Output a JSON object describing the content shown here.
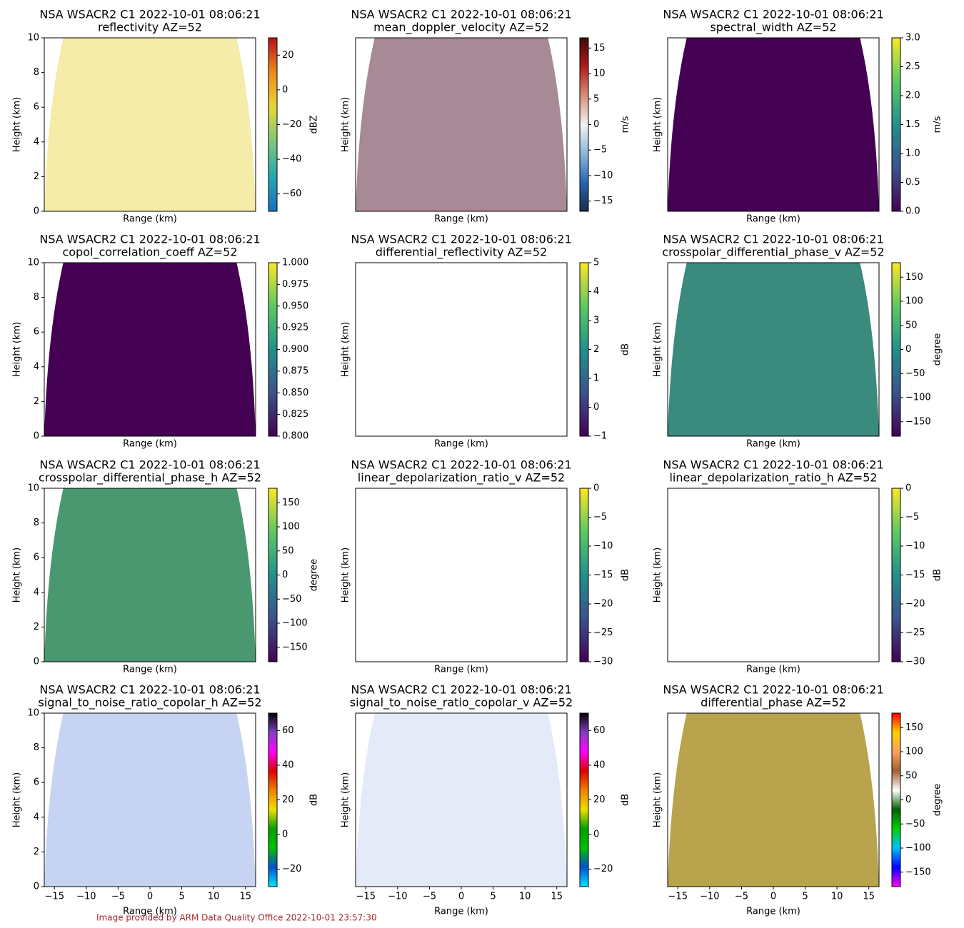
{
  "chart_data": [
    {
      "type": "heatmap",
      "title": "NSA WSACR2 C1 2022-10-01 08:06:21",
      "subtitle": "reflectivity  AZ=52",
      "xlabel": "Range (km)",
      "ylabel": "Height (km)",
      "clabel": "dBZ",
      "xlim": [
        -16.6,
        16.6
      ],
      "ylim": [
        0,
        10
      ],
      "yticks": [
        0,
        2,
        4,
        6,
        8,
        10
      ],
      "fill": "#f4eca8",
      "clim": [
        -70,
        30
      ],
      "cticks": [
        {
          "value": -60,
          "label": "−60"
        },
        {
          "value": -40,
          "label": "−40"
        },
        {
          "value": -20,
          "label": "−20"
        },
        0,
        20
      ],
      "colormap": [
        "#1a6fc0",
        "#23a8b0",
        "#7cc77a",
        "#e6d73a",
        "#f08a1b",
        "#b8101a"
      ]
    },
    {
      "type": "heatmap",
      "title": "NSA WSACR2 C1 2022-10-01 08:06:21",
      "subtitle": "mean_doppler_velocity  AZ=52",
      "xlabel": "Range (km)",
      "ylabel": "Height (km)",
      "clabel": "m/s",
      "xlim": [
        -16.6,
        16.6
      ],
      "ylim": [
        0,
        10
      ],
      "fill": "#a88a96",
      "clim": [
        -17,
        17
      ],
      "cticks": [
        {
          "value": -15,
          "label": "−15"
        },
        {
          "value": -10,
          "label": "−10"
        },
        {
          "value": -5,
          "label": "−5"
        },
        0,
        5,
        10,
        15
      ],
      "colormap": [
        "#1b2a4a",
        "#2565b0",
        "#8fb8d8",
        "#f2f2f2",
        "#d8907a",
        "#b01c1c",
        "#3d0a0a"
      ]
    },
    {
      "type": "heatmap",
      "title": "NSA WSACR2 C1 2022-10-01 08:06:21",
      "subtitle": "spectral_width  AZ=52",
      "xlabel": "Range (km)",
      "ylabel": "Height (km)",
      "clabel": "m/s",
      "xlim": [
        -16.6,
        16.6
      ],
      "ylim": [
        0,
        10
      ],
      "fill": "#440154",
      "clim": [
        0,
        3
      ],
      "cticks": [
        {
          "value": 0,
          "label": "0.0"
        },
        0.5,
        {
          "value": 1,
          "label": "1.0"
        },
        1.5,
        {
          "value": 2,
          "label": "2.0"
        },
        2.5,
        {
          "value": 3,
          "label": "3.0"
        }
      ],
      "colormap": [
        "#440154",
        "#3b528b",
        "#21918c",
        "#5ec962",
        "#fde725"
      ]
    },
    {
      "type": "heatmap",
      "title": "NSA WSACR2 C1 2022-10-01 08:06:21",
      "subtitle": "copol_correlation_coeff  AZ=52",
      "xlabel": "Range (km)",
      "ylabel": "Height (km)",
      "xlim": [
        -16.6,
        16.6
      ],
      "ylim": [
        0,
        10
      ],
      "yticks": [
        0,
        2,
        4,
        6,
        8,
        10
      ],
      "fill": "#440154",
      "clim": [
        0.8,
        1.0
      ],
      "cticks": [
        {
          "value": 0.8,
          "label": "0.800"
        },
        {
          "value": 0.825,
          "label": "0.825"
        },
        {
          "value": 0.85,
          "label": "0.850"
        },
        {
          "value": 0.875,
          "label": "0.875"
        },
        {
          "value": 0.9,
          "label": "0.900"
        },
        {
          "value": 0.925,
          "label": "0.925"
        },
        {
          "value": 0.95,
          "label": "0.950"
        },
        {
          "value": 0.975,
          "label": "0.975"
        },
        {
          "value": 1.0,
          "label": "1.000"
        }
      ],
      "colormap": [
        "#440154",
        "#3b528b",
        "#21918c",
        "#5ec962",
        "#fde725"
      ]
    },
    {
      "type": "heatmap",
      "title": "NSA WSACR2 C1 2022-10-01 08:06:21",
      "subtitle": "differential_reflectivity  AZ=52",
      "xlabel": "Range (km)",
      "ylabel": "Height (km)",
      "clabel": "dB",
      "xlim": [
        -16.6,
        16.6
      ],
      "ylim": [
        0,
        10
      ],
      "clim": [
        -1,
        5
      ],
      "cticks": [
        {
          "value": -1,
          "label": "−1"
        },
        0,
        1,
        2,
        3,
        4,
        5
      ],
      "colormap": [
        "#440154",
        "#3b528b",
        "#21918c",
        "#5ec962",
        "#fde725"
      ]
    },
    {
      "type": "heatmap",
      "title": "NSA WSACR2 C1 2022-10-01 08:06:21",
      "subtitle": "crosspolar_differential_phase_v  AZ=52",
      "xlabel": "Range (km)",
      "ylabel": "Height (km)",
      "clabel": "degree",
      "xlim": [
        -16.6,
        16.6
      ],
      "ylim": [
        0,
        10
      ],
      "fill": "#3a8a7e",
      "clim": [
        -180,
        180
      ],
      "cticks": [
        {
          "value": -150,
          "label": "−150"
        },
        {
          "value": -100,
          "label": "−100"
        },
        {
          "value": -50,
          "label": "−50"
        },
        0,
        50,
        100,
        150
      ],
      "colormap": [
        "#440154",
        "#3b528b",
        "#21918c",
        "#5ec962",
        "#fde725"
      ]
    },
    {
      "type": "heatmap",
      "title": "NSA WSACR2 C1 2022-10-01 08:06:21",
      "subtitle": "crosspolar_differential_phase_h  AZ=52",
      "xlabel": "Range (km)",
      "ylabel": "Height (km)",
      "clabel": "degree",
      "xlim": [
        -16.6,
        16.6
      ],
      "ylim": [
        0,
        10
      ],
      "yticks": [
        0,
        2,
        4,
        6,
        8,
        10
      ],
      "fill": "#4a9870",
      "clim": [
        -180,
        180
      ],
      "cticks": [
        {
          "value": -150,
          "label": "−150"
        },
        {
          "value": -100,
          "label": "−100"
        },
        {
          "value": -50,
          "label": "−50"
        },
        0,
        50,
        100,
        150
      ],
      "colormap": [
        "#440154",
        "#3b528b",
        "#21918c",
        "#5ec962",
        "#fde725"
      ]
    },
    {
      "type": "heatmap",
      "title": "NSA WSACR2 C1 2022-10-01 08:06:21",
      "subtitle": "linear_depolarization_ratio_v  AZ=52",
      "xlabel": "Range (km)",
      "ylabel": "Height (km)",
      "clabel": "dB",
      "xlim": [
        -16.6,
        16.6
      ],
      "ylim": [
        0,
        10
      ],
      "clim": [
        -30,
        0
      ],
      "cticks": [
        {
          "value": -30,
          "label": "−30"
        },
        {
          "value": -25,
          "label": "−25"
        },
        {
          "value": -20,
          "label": "−20"
        },
        {
          "value": -15,
          "label": "−15"
        },
        {
          "value": -10,
          "label": "−10"
        },
        {
          "value": -5,
          "label": "−5"
        },
        0
      ],
      "colormap": [
        "#440154",
        "#3b528b",
        "#21918c",
        "#5ec962",
        "#fde725"
      ]
    },
    {
      "type": "heatmap",
      "title": "NSA WSACR2 C1 2022-10-01 08:06:21",
      "subtitle": "linear_depolarization_ratio_h  AZ=52",
      "xlabel": "Range (km)",
      "ylabel": "Height (km)",
      "clabel": "dB",
      "xlim": [
        -16.6,
        16.6
      ],
      "ylim": [
        0,
        10
      ],
      "clim": [
        -30,
        0
      ],
      "cticks": [
        {
          "value": -30,
          "label": "−30"
        },
        {
          "value": -25,
          "label": "−25"
        },
        {
          "value": -20,
          "label": "−20"
        },
        {
          "value": -15,
          "label": "−15"
        },
        {
          "value": -10,
          "label": "−10"
        },
        {
          "value": -5,
          "label": "−5"
        },
        0
      ],
      "colormap": [
        "#440154",
        "#3b528b",
        "#21918c",
        "#5ec962",
        "#fde725"
      ]
    },
    {
      "type": "heatmap",
      "title": "NSA WSACR2 C1 2022-10-01 08:06:21",
      "subtitle": "signal_to_noise_ratio_copolar_h  AZ=52",
      "xlabel": "Range (km)",
      "ylabel": "Height (km)",
      "clabel": "dB",
      "xlim": [
        -16.6,
        16.6
      ],
      "ylim": [
        0,
        10
      ],
      "yticks": [
        0,
        2,
        4,
        6,
        8,
        10
      ],
      "fill": "#c6d3f2",
      "xticks": [
        {
          "value": -15,
          "label": "−15"
        },
        {
          "value": -10,
          "label": "−10"
        },
        {
          "value": -5,
          "label": "−5"
        },
        0,
        5,
        10,
        15
      ],
      "clim": [
        -30,
        70
      ],
      "cticks": [
        {
          "value": -20,
          "label": "−20"
        },
        0,
        20,
        40,
        60
      ],
      "colormap": [
        "#00e5ff",
        "#0050d0",
        "#00c000",
        "#00a000",
        "#f0e000",
        "#f08000",
        "#e00000",
        "#ff00ff",
        "#8040c0",
        "#000000"
      ]
    },
    {
      "type": "heatmap",
      "title": "NSA WSACR2 C1 2022-10-01 08:06:21",
      "subtitle": "signal_to_noise_ratio_copolar_v  AZ=52",
      "xlabel": "Range (km)",
      "ylabel": "Height (km)",
      "clabel": "dB",
      "xlim": [
        -16.6,
        16.6
      ],
      "ylim": [
        0,
        10
      ],
      "fill": "#e4eaf8",
      "xticks": [
        {
          "value": -15,
          "label": "−15"
        },
        {
          "value": -10,
          "label": "−10"
        },
        {
          "value": -5,
          "label": "−5"
        },
        0,
        5,
        10,
        15
      ],
      "clim": [
        -30,
        70
      ],
      "cticks": [
        {
          "value": -20,
          "label": "−20"
        },
        0,
        20,
        40,
        60
      ],
      "colormap": [
        "#00e5ff",
        "#0050d0",
        "#00c000",
        "#00a000",
        "#f0e000",
        "#f08000",
        "#e00000",
        "#ff00ff",
        "#8040c0",
        "#000000"
      ]
    },
    {
      "type": "heatmap",
      "title": "NSA WSACR2 C1 2022-10-01 08:06:21",
      "subtitle": "differential_phase  AZ=52",
      "xlabel": "Range (km)",
      "ylabel": "Height (km)",
      "clabel": "degree",
      "xlim": [
        -16.6,
        16.6
      ],
      "ylim": [
        0,
        10
      ],
      "fill": "#b9a34c",
      "xticks": [
        {
          "value": -15,
          "label": "−15"
        },
        {
          "value": -10,
          "label": "−10"
        },
        {
          "value": -5,
          "label": "−5"
        },
        0,
        5,
        10,
        15
      ],
      "clim": [
        -180,
        180
      ],
      "cticks": [
        {
          "value": -150,
          "label": "−150"
        },
        {
          "value": -100,
          "label": "−100"
        },
        {
          "value": -50,
          "label": "−50"
        },
        0,
        50,
        100,
        150
      ],
      "colormap": [
        "#ff00ff",
        "#0000ff",
        "#00c0ff",
        "#00d000",
        "#006000",
        "#ffffff",
        "#a06030",
        "#ffa060",
        "#ffd000",
        "#ff0000"
      ]
    }
  ],
  "footer": "Image provided by ARM Data Quality Office 2022-10-01 23:57:30"
}
